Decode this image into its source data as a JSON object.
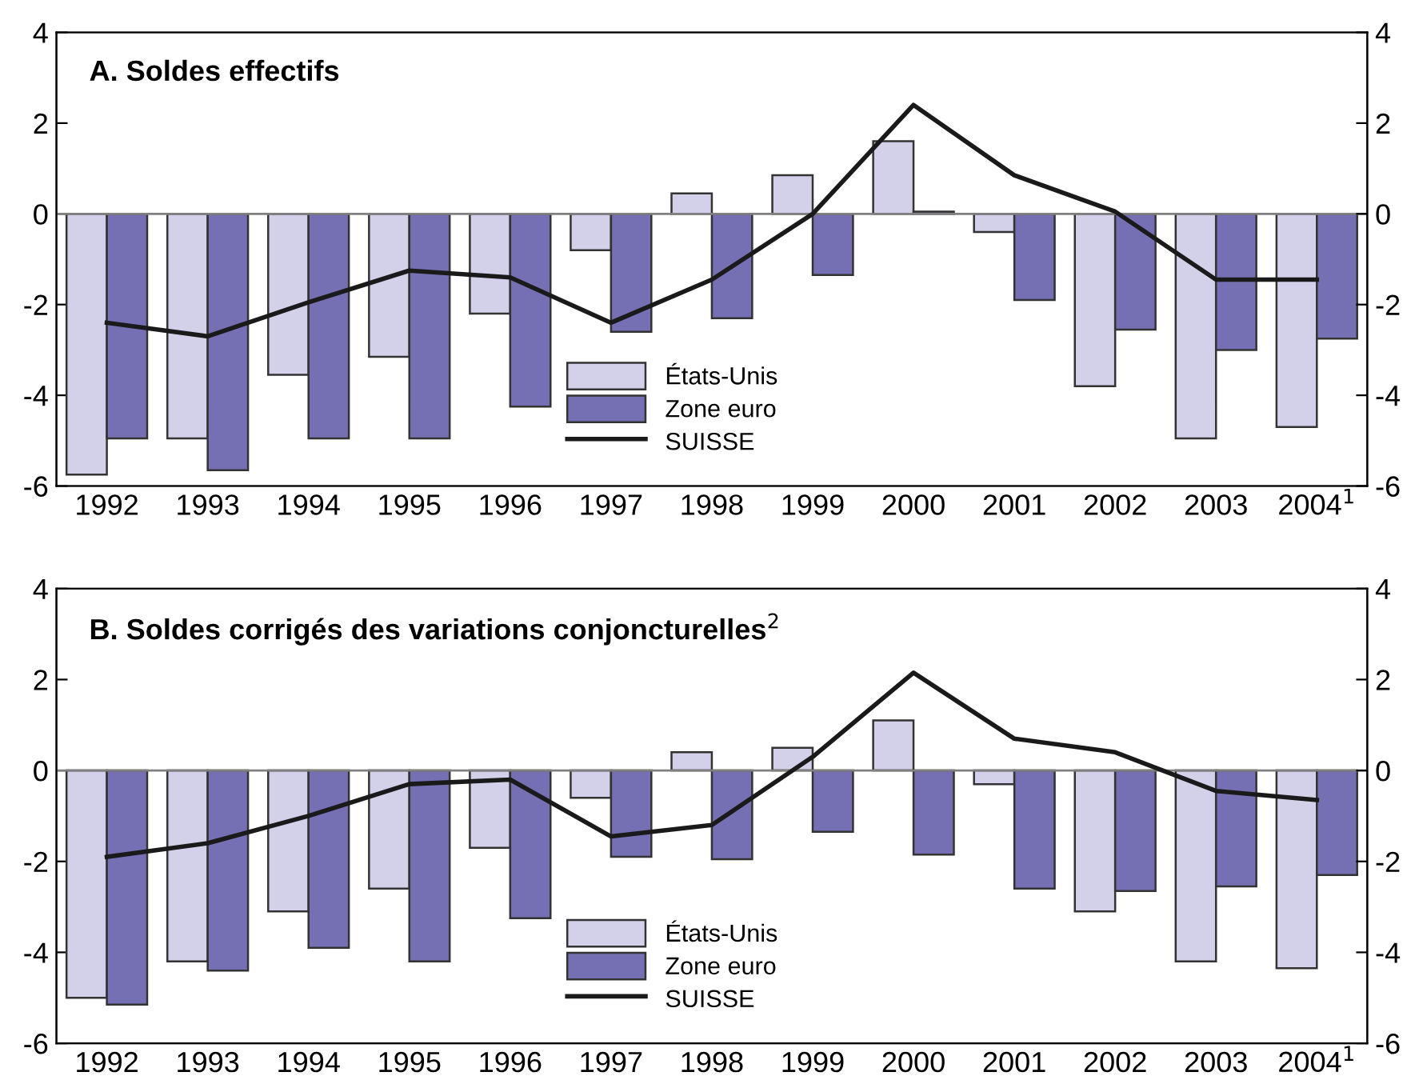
{
  "chart_data": [
    {
      "type": "bar",
      "title": "A. Soldes effectifs",
      "categories": [
        "1992",
        "1993",
        "1994",
        "1995",
        "1996",
        "1997",
        "1998",
        "1999",
        "2000",
        "2001",
        "2002",
        "2003",
        "2004$^{1}$"
      ],
      "series": [
        {
          "name": "États-Unis",
          "color": "#d3d1e9",
          "values": [
            -5.75,
            -4.95,
            -3.55,
            -3.15,
            -2.2,
            -0.8,
            0.45,
            0.85,
            1.6,
            -0.4,
            -3.8,
            -4.95,
            -4.7
          ]
        },
        {
          "name": "Zone euro",
          "color": "#7570b3",
          "values": [
            -4.95,
            -5.65,
            -4.95,
            -4.95,
            -4.25,
            -2.6,
            -2.3,
            -1.35,
            0.05,
            -1.9,
            -2.55,
            -3.0,
            -2.75
          ]
        },
        {
          "name": "SUISSE",
          "type": "line",
          "color": "#1a1a1a",
          "values": [
            -2.4,
            -2.7,
            -1.95,
            -1.25,
            -1.4,
            -2.4,
            -1.45,
            0.0,
            2.4,
            0.85,
            0.05,
            -1.45,
            -1.45
          ]
        }
      ],
      "ylim": [
        -6,
        4
      ],
      "yticks": [
        -6,
        -4,
        -2,
        0,
        2,
        4
      ],
      "y2lim": [
        -6,
        4
      ],
      "y2ticks": [
        -6,
        -4,
        -2,
        0,
        2,
        4
      ],
      "ref_lines": [
        {
          "axis": "y",
          "value": 0,
          "color": "#808080"
        }
      ],
      "legend": "bottom",
      "marker": "none",
      "line_style": "solid"
    },
    {
      "type": "bar",
      "title": "B. Soldes corrigés des variations conjoncturelles$^{2}$",
      "categories": [
        "1992",
        "1993",
        "1994",
        "1995",
        "1996",
        "1997",
        "1998",
        "1999",
        "2000",
        "2001",
        "2002",
        "2003",
        "2004$^{1}$"
      ],
      "series": [
        {
          "name": "États-Unis",
          "color": "#d3d1e9",
          "values": [
            -5.0,
            -4.2,
            -3.1,
            -2.6,
            -1.7,
            -0.6,
            0.4,
            0.5,
            1.1,
            -0.3,
            -3.1,
            -4.2,
            -4.35
          ]
        },
        {
          "name": "Zone euro",
          "color": "#7570b3",
          "values": [
            -5.15,
            -4.4,
            -3.9,
            -4.2,
            -3.25,
            -1.9,
            -1.95,
            -1.35,
            -1.85,
            -2.6,
            -2.65,
            -2.55,
            -2.3
          ]
        },
        {
          "name": "SUISSE",
          "type": "line",
          "color": "#1a1a1a",
          "values": [
            -1.9,
            -1.6,
            -1.0,
            -0.3,
            -0.2,
            -1.45,
            -1.2,
            0.3,
            2.15,
            0.7,
            0.4,
            -0.45,
            -0.65
          ]
        }
      ],
      "ylim": [
        -6,
        4
      ],
      "yticks": [
        -6,
        -4,
        -2,
        0,
        2,
        4
      ],
      "y2lim": [
        -6,
        4
      ],
      "y2ticks": [
        -6,
        -4,
        -2,
        0,
        2,
        4
      ],
      "ref_lines": [
        {
          "axis": "y",
          "value": 0,
          "color": "#808080"
        }
      ],
      "legend": "bottom",
      "marker": "none",
      "line_style": "solid"
    }
  ]
}
